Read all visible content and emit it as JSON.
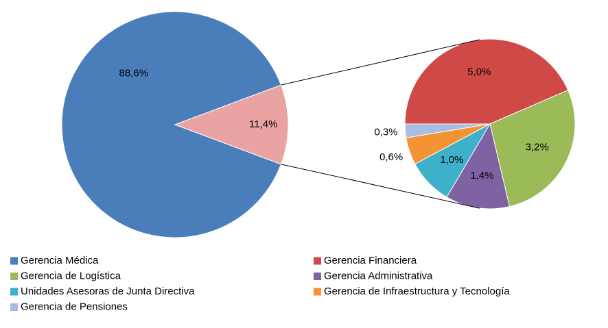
{
  "chart_data": {
    "type": "pie_of_pie",
    "categories": [
      "Gerencia Médica",
      "Gerencia Financiera",
      "Gerencia de Logística",
      "Gerencia Administrativa",
      "Unidades Asesoras de Junta Directiva",
      "Gerencia de Infraestructura y Tecnología",
      "Gerencia de Pensiones"
    ],
    "values": [
      88.6,
      5.0,
      3.2,
      1.4,
      1.0,
      0.6,
      0.3
    ],
    "value_labels": [
      "88,6%",
      "5,0%",
      "3,2%",
      "1,4%",
      "1,0%",
      "0,6%",
      "0,3%"
    ],
    "colors": [
      "#4a7ebb",
      "#cf4a47",
      "#9bbb59",
      "#7f62a1",
      "#3fb0c9",
      "#f39333",
      "#a9bde2"
    ],
    "other": {
      "value": 11.4,
      "value_label": "11,4%",
      "color": "#e8a3a2"
    }
  }
}
